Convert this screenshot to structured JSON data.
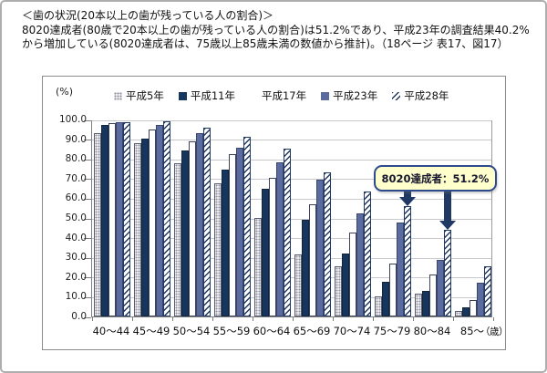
{
  "header": {
    "line1": "＜歯の状況(20本以上の歯が残っている人の割合)＞",
    "line2": "8020達成者(80歳で20本以上の歯が残っている人の割合)は51.2%であり、平成23年の調査結果40.2%",
    "line3": "から増加している(8020達成者は、75歳以上85歳未満の数値から推計)。（18ページ 表17、図17）"
  },
  "chart_data": {
    "type": "bar",
    "title": "",
    "ylabel": "(%)",
    "xlabel_unit": "（歳）",
    "ylim": [
      0,
      100
    ],
    "ytick_step": 10,
    "grid": true,
    "legend_position": "top",
    "categories": [
      "40〜44",
      "45〜49",
      "50〜54",
      "55〜59",
      "60〜64",
      "65〜69",
      "70〜74",
      "75〜79",
      "80〜84",
      "85〜"
    ],
    "series": [
      {
        "name": "平成5年",
        "pattern": "dotted-gray",
        "values": [
          92.9,
          88.1,
          77.9,
          67.5,
          49.9,
          31.4,
          25.5,
          10.0,
          11.7,
          2.8
        ]
      },
      {
        "name": "平成11年",
        "pattern": "solid-navy",
        "values": [
          97.1,
          90.2,
          84.3,
          74.6,
          64.9,
          48.9,
          31.9,
          17.5,
          13.0,
          4.5
        ]
      },
      {
        "name": "平成17年",
        "pattern": "white",
        "values": [
          98.0,
          95.0,
          88.9,
          82.3,
          70.3,
          57.1,
          42.4,
          27.1,
          21.1,
          8.3
        ]
      },
      {
        "name": "平成23年",
        "pattern": "solid-slate",
        "values": [
          98.7,
          97.1,
          93.0,
          85.7,
          78.4,
          69.6,
          52.3,
          47.6,
          28.9,
          17.0
        ]
      },
      {
        "name": "平成28年",
        "pattern": "hatched",
        "values": [
          98.8,
          99.0,
          95.9,
          91.3,
          85.2,
          73.0,
          63.4,
          56.1,
          44.2,
          25.7
        ]
      }
    ],
    "annotation": {
      "text": "8020達成者：51.2%",
      "targets": [
        {
          "category": "75〜79",
          "series": "平成28年"
        },
        {
          "category": "80〜84",
          "series": "平成28年"
        }
      ]
    }
  },
  "colors": {
    "navy": "#17365d",
    "slate": "#5b6b9e",
    "hatch_stripe": "#1f3864",
    "annotation_bg": "#ffffcc",
    "annotation_border": "#2c4a8c",
    "arrow": "#1f3864",
    "gridline": "#c9c9cd"
  }
}
